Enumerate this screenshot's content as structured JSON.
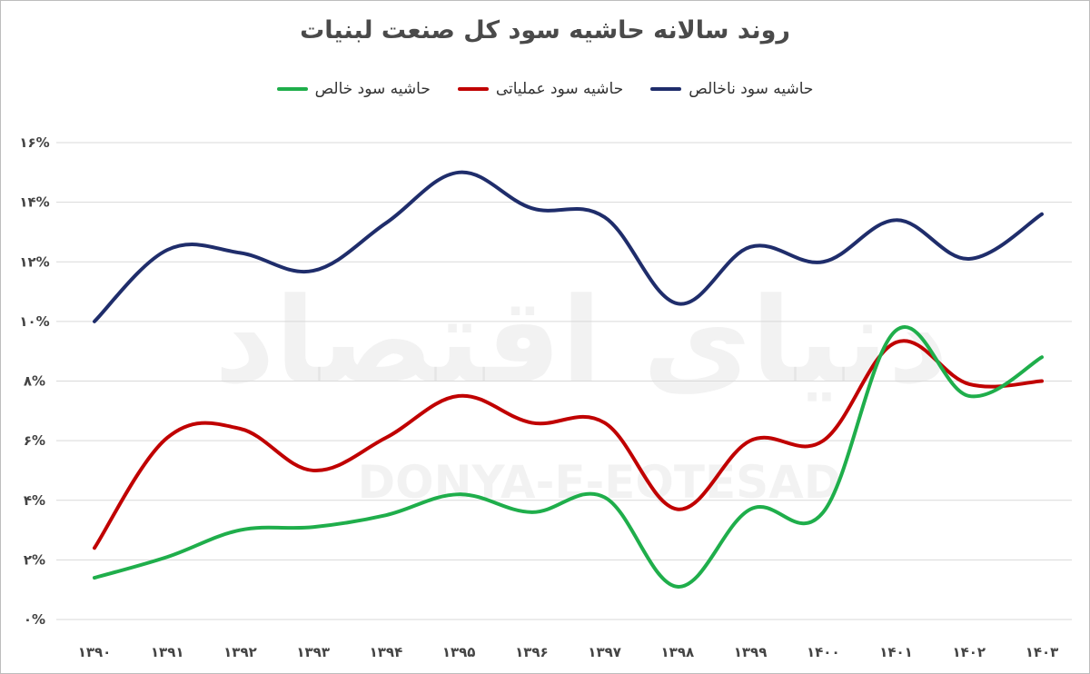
{
  "chart_data": {
    "type": "line",
    "title": "روند سالانه حاشیه سود کل صنعت لبنیات",
    "xlabel": "",
    "ylabel": "",
    "categories": [
      "۱۳۹۰",
      "۱۳۹۱",
      "۱۳۹۲",
      "۱۳۹۳",
      "۱۳۹۴",
      "۱۳۹۵",
      "۱۳۹۶",
      "۱۳۹۷",
      "۱۳۹۸",
      "۱۳۹۹",
      "۱۴۰۰",
      "۱۴۰۱",
      "۱۴۰۲",
      "۱۴۰۳"
    ],
    "y_tick_labels": [
      "۰%",
      "۲%",
      "۴%",
      "۶%",
      "۸%",
      "۱۰%",
      "۱۲%",
      "۱۴%",
      "۱۶%"
    ],
    "ylim": [
      0,
      16
    ],
    "grid": true,
    "legend_position": "top",
    "series": [
      {
        "name": "حاشیه سود ناخالص",
        "color": "#1f2d6b",
        "values": [
          10.0,
          12.4,
          12.3,
          11.7,
          13.3,
          15.0,
          13.8,
          13.5,
          10.6,
          12.5,
          12.0,
          13.4,
          12.1,
          13.6
        ]
      },
      {
        "name": "حاشیه سود عملیاتی",
        "color": "#c00000",
        "values": [
          2.4,
          6.1,
          6.4,
          5.0,
          6.1,
          7.5,
          6.6,
          6.6,
          3.7,
          6.0,
          6.0,
          9.3,
          7.9,
          8.0
        ]
      },
      {
        "name": "حاشیه سود خالص",
        "color": "#1fae4b",
        "values": [
          1.4,
          2.1,
          3.0,
          3.1,
          3.5,
          4.2,
          3.6,
          4.1,
          1.1,
          3.7,
          3.6,
          9.7,
          7.5,
          8.8
        ]
      }
    ]
  },
  "watermark": {
    "text_fa": "دنیای اقتصاد",
    "text_en": "DONYA-E-EQTESAD"
  }
}
